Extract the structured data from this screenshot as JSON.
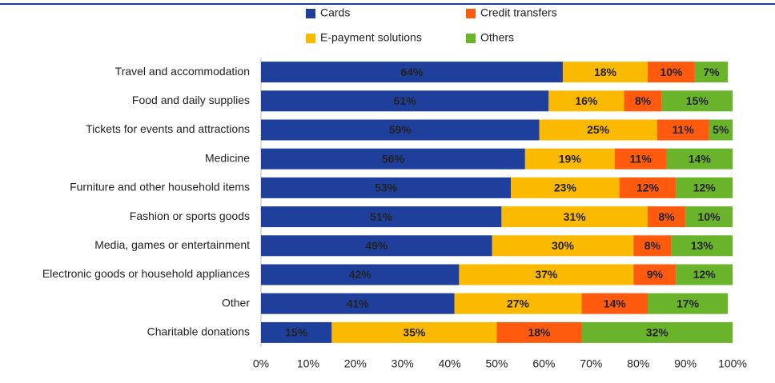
{
  "chart_data": {
    "type": "stacked-bar-horizontal",
    "categories": [
      "Travel and accommodation",
      "Food and daily supplies",
      "Tickets for events and attractions",
      "Medicine",
      "Furniture and other household items",
      "Fashion or sports goods",
      "Media, games or entertainment",
      "Electronic goods or household appliances",
      "Other",
      "Charitable donations"
    ],
    "series": [
      {
        "name": "Cards",
        "color": "#1f3f9d",
        "values": [
          64,
          61,
          59,
          56,
          53,
          51,
          49,
          42,
          41,
          15
        ],
        "value_labels": [
          "64%",
          "61%",
          "59%",
          "56%",
          "53%",
          "51%",
          "49%",
          "42%",
          "41%",
          "15%"
        ]
      },
      {
        "name": "E-payment solutions",
        "color": "#fbb900",
        "values": [
          18,
          16,
          25,
          19,
          23,
          31,
          30,
          37,
          27,
          35
        ],
        "value_labels": [
          "18%",
          "16%",
          "25%",
          "19%",
          "23%",
          "31%",
          "30%",
          "37%",
          "27%",
          "35%"
        ]
      },
      {
        "name": "Credit transfers",
        "color": "#ff5a0d",
        "values": [
          10,
          8,
          11,
          11,
          12,
          8,
          8,
          9,
          14,
          18
        ],
        "value_labels": [
          "10%",
          "8%",
          "11%",
          "11%",
          "12%",
          "8%",
          "8%",
          "9%",
          "14%",
          "18%"
        ]
      },
      {
        "name": "Others",
        "color": "#6ab42c",
        "values": [
          7,
          15,
          5,
          14,
          12,
          10,
          13,
          12,
          17,
          32
        ],
        "value_labels": [
          "7%",
          "15%",
          "5%",
          "14%",
          "12%",
          "10%",
          "13%",
          "12%",
          "17%",
          "32%"
        ]
      }
    ],
    "xlim": [
      0,
      100
    ],
    "xticks": [
      {
        "value": 0,
        "label": "0%"
      },
      {
        "value": 10,
        "label": "10%"
      },
      {
        "value": 20,
        "label": "20%"
      },
      {
        "value": 30,
        "label": "30%"
      },
      {
        "value": 40,
        "label": "40%"
      },
      {
        "value": 50,
        "label": "50%"
      },
      {
        "value": 60,
        "label": "60%"
      },
      {
        "value": 70,
        "label": "70%"
      },
      {
        "value": 80,
        "label": "80%"
      },
      {
        "value": 90,
        "label": "90%"
      },
      {
        "value": 100,
        "label": "100%"
      }
    ],
    "grid": false
  }
}
